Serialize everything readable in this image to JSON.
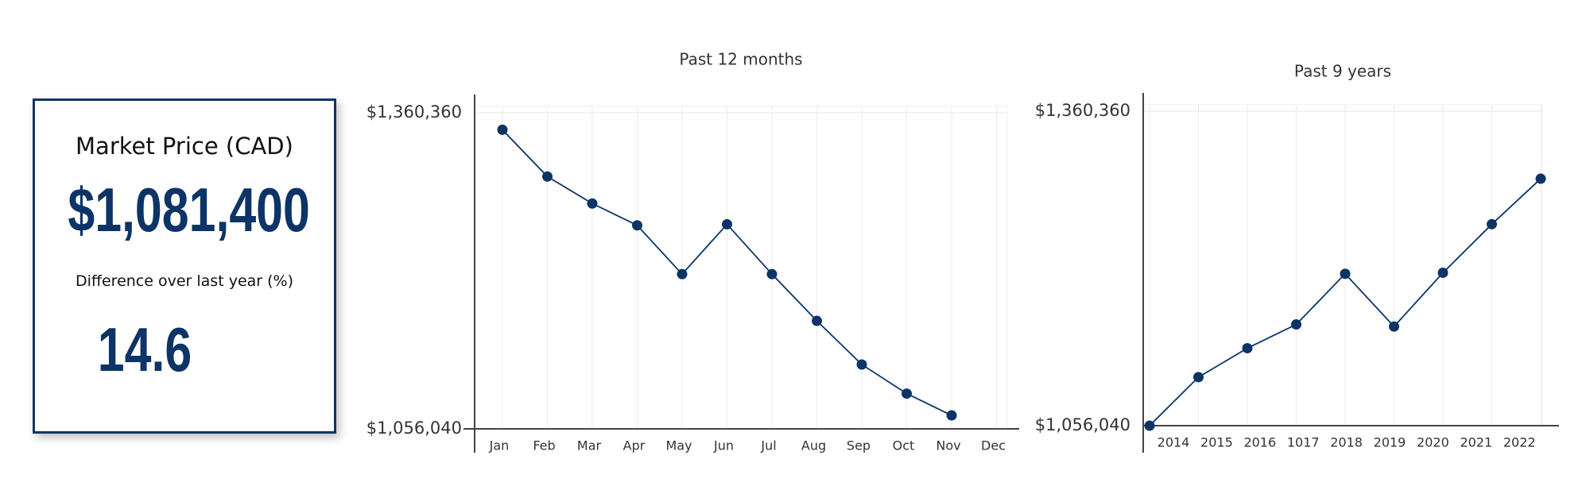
{
  "card": {
    "title": "Market Price (CAD)",
    "value": "$1,081,400",
    "subtitle": "Difference over last year (%)",
    "change": "14.6"
  },
  "chart_data": [
    {
      "type": "line",
      "title": "Past 12 months",
      "categories": [
        "Jan",
        "Feb",
        "Mar",
        "Apr",
        "May",
        "Jun",
        "Jul",
        "Aug",
        "Sep",
        "Oct",
        "Nov",
        "Dec"
      ],
      "series": [
        {
          "name": "Market price",
          "color": "#0d3466",
          "values": [
            1344000,
            1299000,
            1273000,
            1252000,
            1205000,
            1253000,
            1205000,
            1160000,
            1118000,
            1090000,
            1069000,
            null
          ]
        }
      ],
      "ylim": [
        1056040,
        1360360
      ],
      "yticks": [
        {
          "value": 1056040,
          "label": "$1,056,040"
        },
        {
          "value": 1360360,
          "label": "$1,360,360"
        }
      ],
      "grid": true
    },
    {
      "type": "line",
      "title": "Past 9 years",
      "categories": [
        "2014",
        "2015",
        "2016",
        "1017",
        "2018",
        "2019",
        "2020",
        "2021",
        "2022"
      ],
      "series": [
        {
          "name": "Market price",
          "color": "#0d3466",
          "values": [
            1056000,
            1103000,
            1131000,
            1154000,
            1203000,
            1152000,
            1204000,
            1251000,
            1295000
          ]
        }
      ],
      "ylim": [
        1056040,
        1360360
      ],
      "yticks": [
        {
          "value": 1056040,
          "label": "$1,056,040"
        },
        {
          "value": 1360360,
          "label": "$1,360,360"
        }
      ],
      "grid": true
    }
  ]
}
